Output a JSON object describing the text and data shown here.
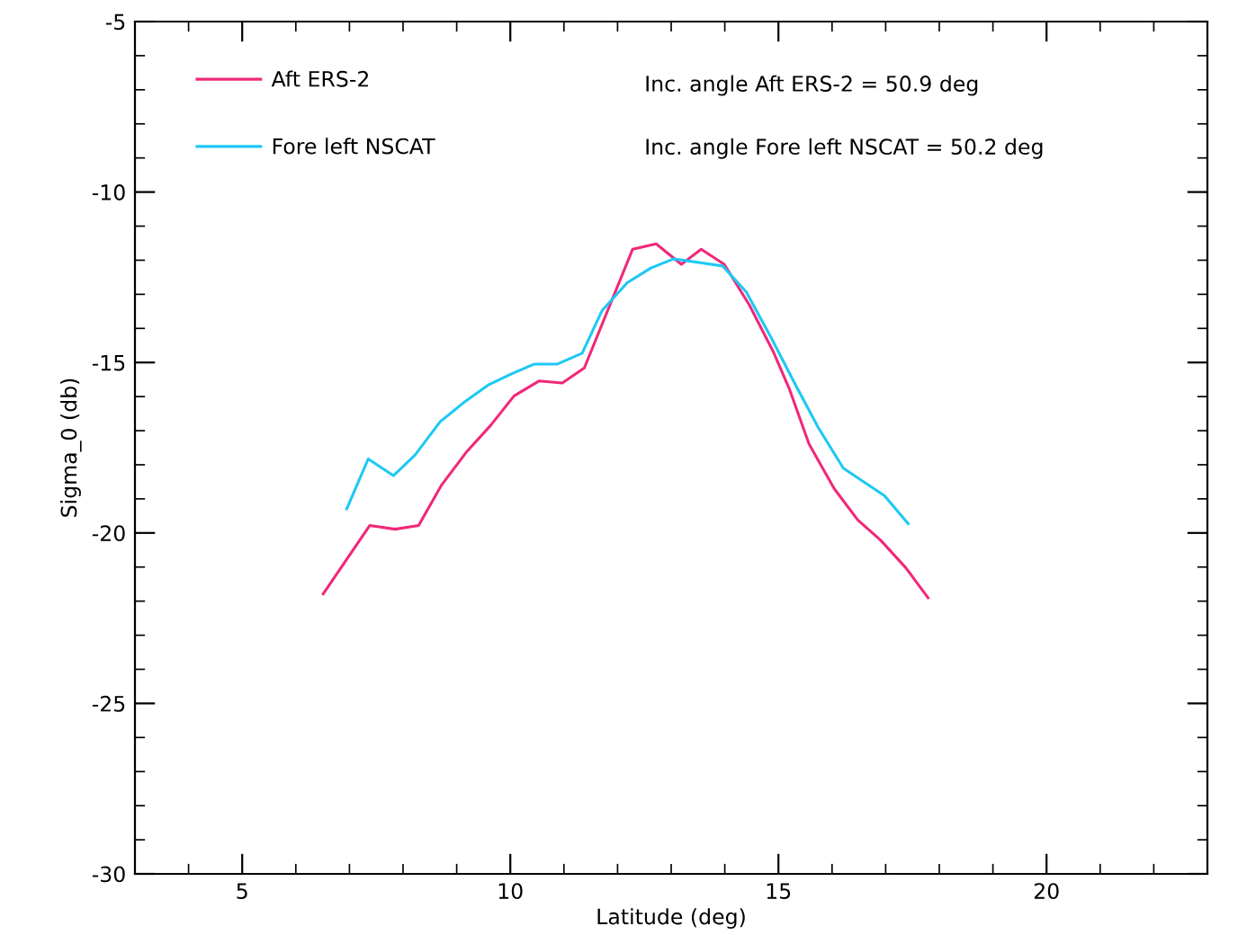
{
  "chart_data": {
    "type": "line",
    "xlabel": "Latitude (deg)",
    "ylabel": "Sigma_0 (db)",
    "xlim": [
      3,
      23
    ],
    "xticks": [
      5,
      10,
      15,
      20
    ],
    "ylim": [
      -30,
      -5
    ],
    "yticks": [
      -30,
      -25,
      -20,
      -15,
      -10,
      -5
    ],
    "grid": false,
    "legend": "top left",
    "marker": "none",
    "line_style": "solid",
    "annotations": [
      "Inc. angle Aft ERS-2 = 50.9 deg",
      "Inc. angle Fore left NSCAT = 50.2 deg"
    ],
    "series": [
      {
        "name": "Aft ERS-2",
        "color": "#f0287a",
        "x": [
          6.51,
          7.38,
          7.85,
          8.29,
          8.72,
          9.19,
          9.63,
          10.07,
          10.54,
          10.97,
          11.38,
          12.28,
          12.72,
          13.19,
          13.56,
          13.99,
          14.46,
          14.9,
          15.2,
          15.57,
          16.04,
          16.48,
          16.91,
          17.38,
          17.79
        ],
        "values": [
          -21.79,
          -19.78,
          -19.89,
          -19.78,
          -18.59,
          -17.61,
          -16.85,
          -15.98,
          -15.54,
          -15.6,
          -15.16,
          -11.68,
          -11.52,
          -12.12,
          -11.68,
          -12.12,
          -13.32,
          -14.67,
          -15.76,
          -17.39,
          -18.7,
          -19.62,
          -20.22,
          -21.03,
          -21.9
        ]
      },
      {
        "name": "Fore left NSCAT",
        "color": "#1ec8f5",
        "x": [
          6.95,
          7.35,
          7.82,
          8.22,
          8.69,
          9.16,
          9.6,
          10.03,
          10.44,
          10.87,
          11.34,
          11.71,
          12.18,
          12.62,
          13.05,
          13.52,
          13.96,
          14.4,
          14.87,
          15.3,
          15.74,
          16.21,
          16.98,
          17.42
        ],
        "values": [
          -19.29,
          -17.83,
          -18.32,
          -17.72,
          -16.74,
          -16.14,
          -15.65,
          -15.33,
          -15.05,
          -15.05,
          -14.73,
          -13.48,
          -12.66,
          -12.23,
          -11.96,
          -12.07,
          -12.17,
          -12.93,
          -14.29,
          -15.6,
          -16.9,
          -18.1,
          -18.91,
          -19.73
        ]
      }
    ]
  }
}
